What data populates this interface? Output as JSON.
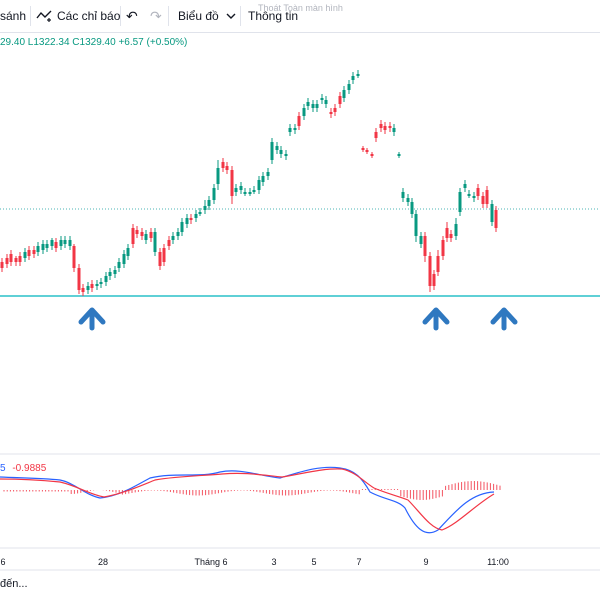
{
  "toolbar": {
    "compare_label": "sánh",
    "indicators_label": "Các chỉ báo",
    "chart_label": "Biểu đồ",
    "info_label": "Thông tin",
    "fullscreen_hint": "Thoát Toàn màn hình"
  },
  "legend": {
    "ohlc_text": "29.40  L1322.34  C1329.40  +6.57 (+0.50%)"
  },
  "macd": {
    "value_a": "5",
    "value_b": "-0.9885"
  },
  "x_axis": {
    "labels": [
      "6",
      "28",
      "Tháng 6",
      "3",
      "5",
      "7",
      "9",
      "11:00"
    ]
  },
  "status": {
    "loading_text": "đến..."
  },
  "colors": {
    "up": "#089981",
    "down": "#f23645",
    "support_line": "#5fd0d6",
    "dotted_line": "#4bb5b5",
    "arrow": "#2f78c0",
    "macd_line": "#2962ff",
    "signal_line": "#f23645"
  }
}
